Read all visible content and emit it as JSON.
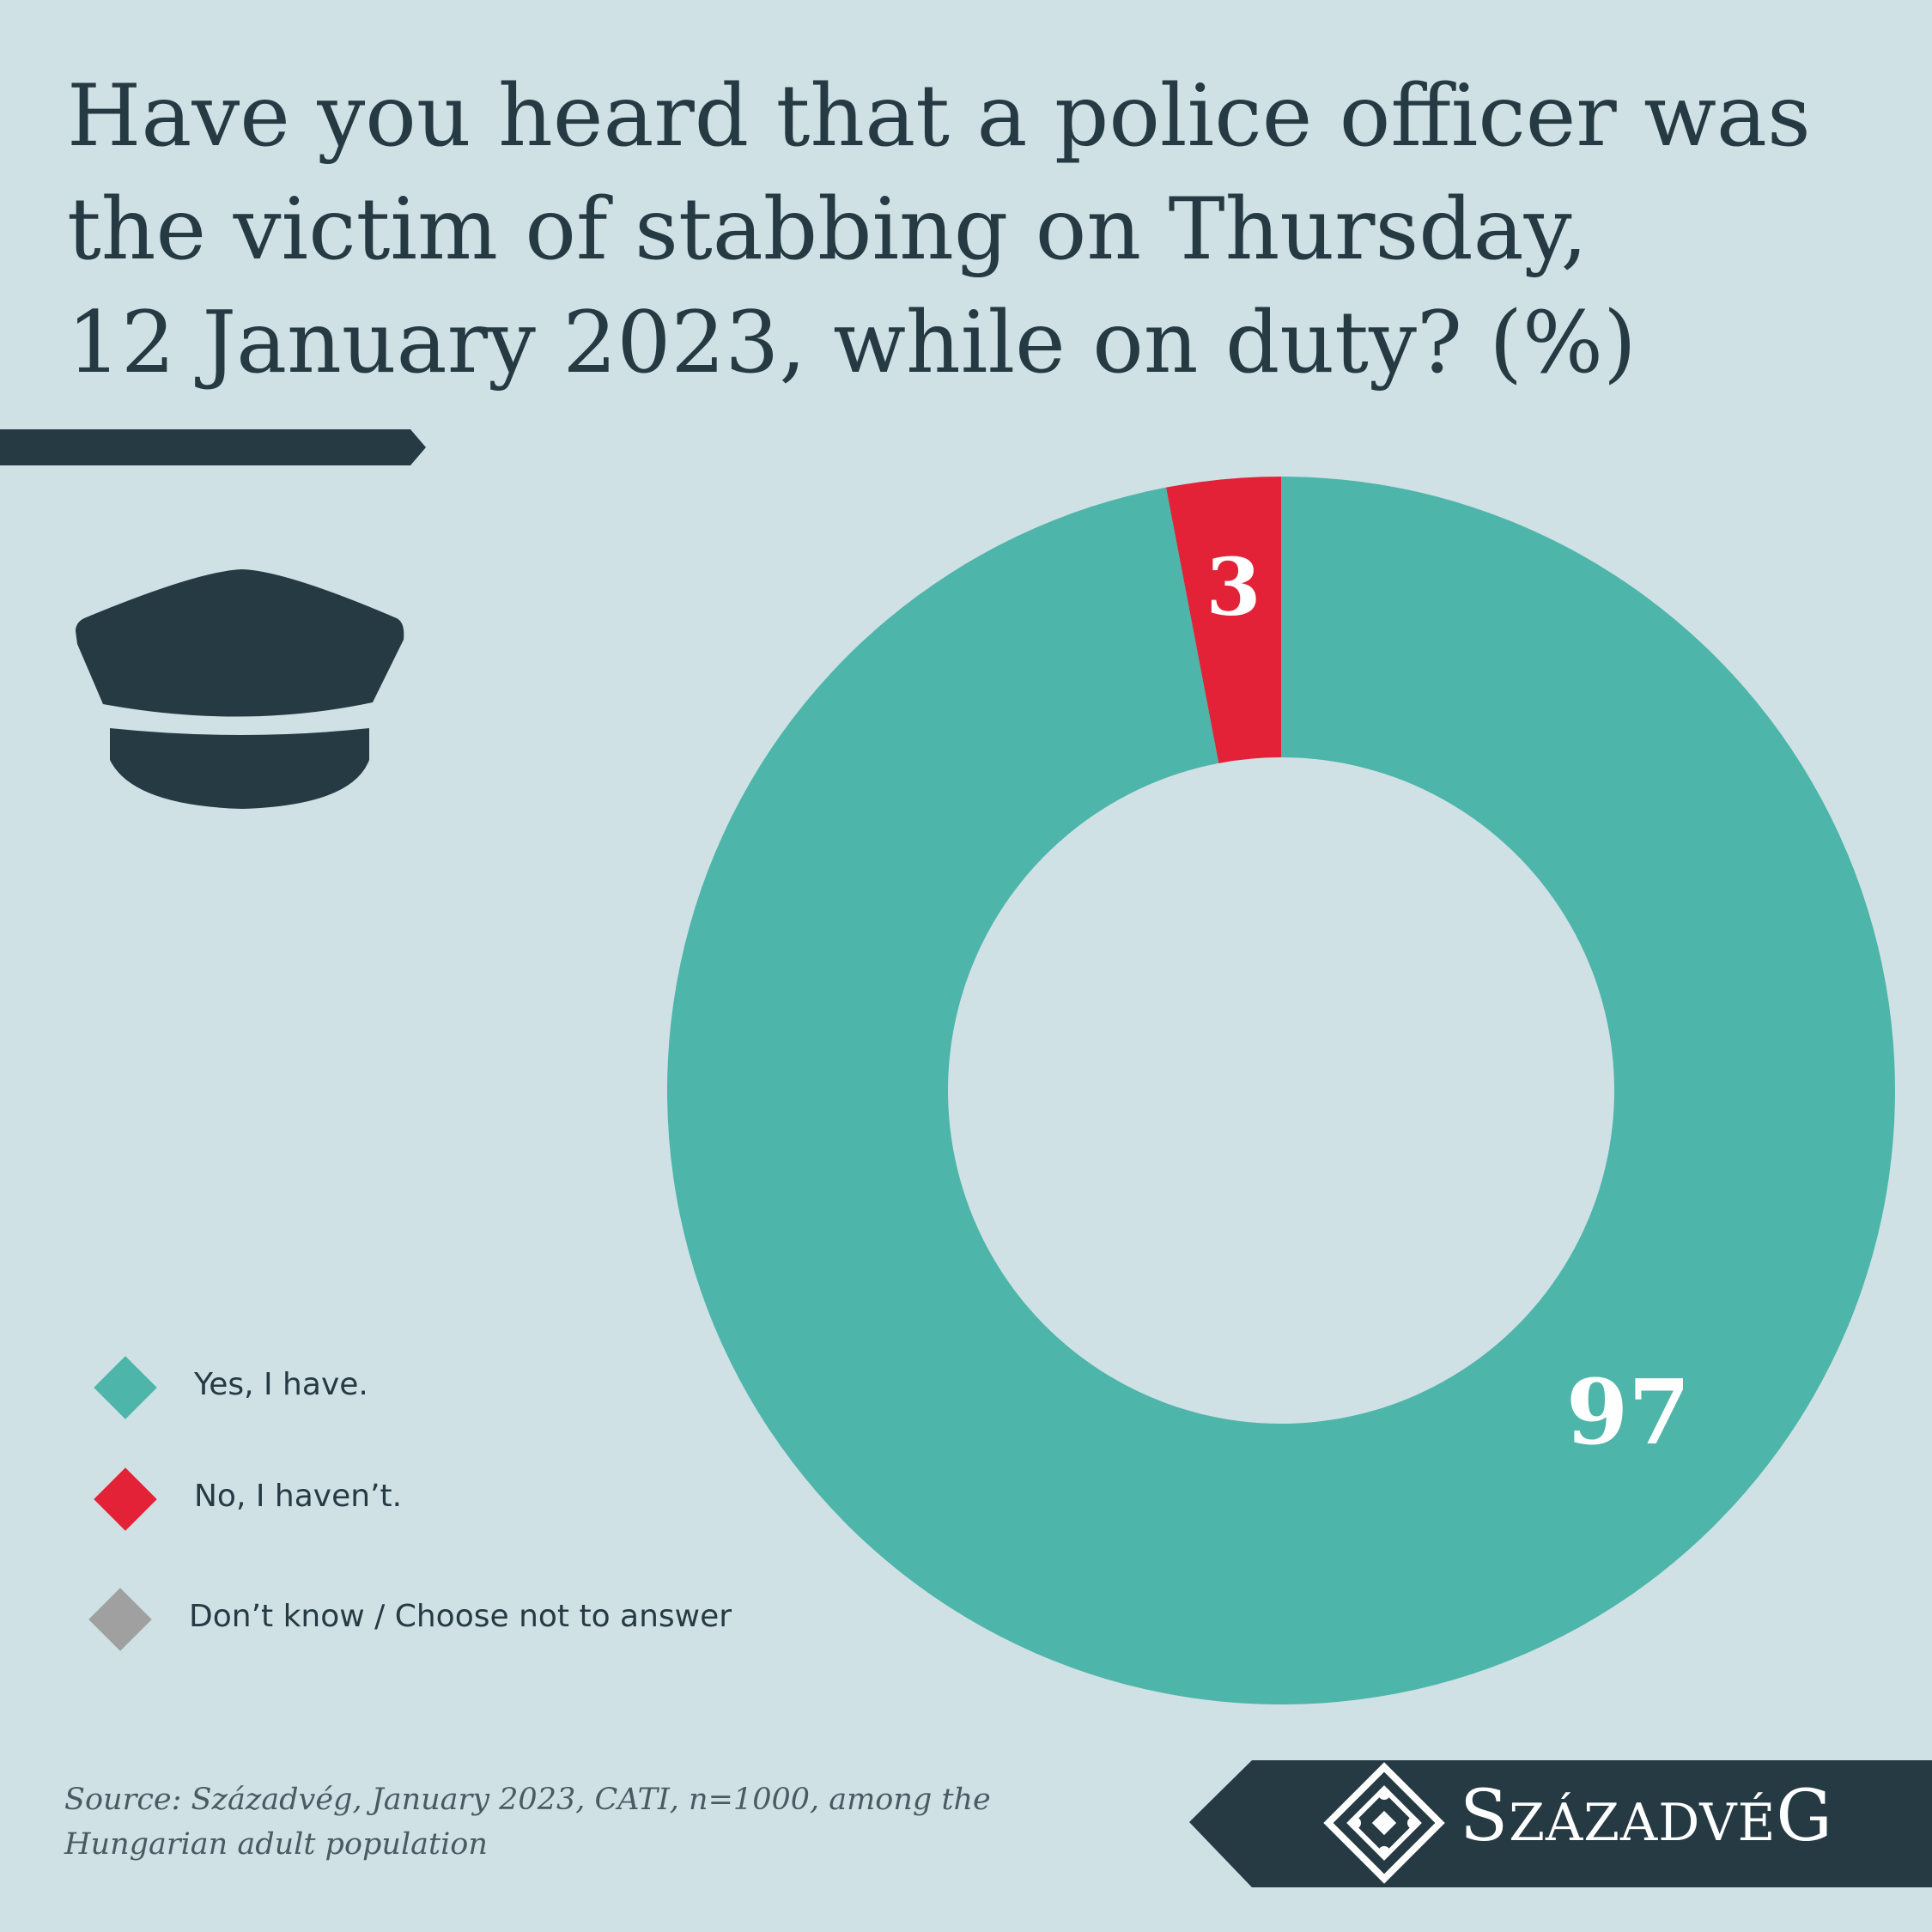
{
  "title_lines": [
    "Have you heard that a police officer was",
    "the victim of stabbing on Thursday,",
    "12 January 2023, while on duty? (%)"
  ],
  "colors": {
    "background": "#cfe1e4",
    "dark": "#263a44",
    "yes": "#4db5aa",
    "no": "#e32237",
    "dont_know": "#a0a0a0"
  },
  "icon": "police-cap-icon",
  "chart_data": {
    "type": "pie",
    "variant": "donut",
    "title": "Have you heard that a police officer was the victim of stabbing on Thursday, 12 January 2023, while on duty? (%)",
    "categories": [
      "Yes, I have.",
      "No, I haven’t.",
      "Don’t know / Choose not to answer"
    ],
    "values": [
      97,
      3,
      0
    ],
    "data_labels": [
      "97",
      "3",
      ""
    ],
    "colors": [
      "#4db5aa",
      "#e32237",
      "#a0a0a0"
    ],
    "legend_position": "bottom-left"
  },
  "legend": [
    {
      "label": "Yes, I have.",
      "color": "#4db5aa"
    },
    {
      "label": "No, I haven’t.",
      "color": "#e32237"
    },
    {
      "label": "Don’t know / Choose not to answer",
      "color": "#a0a0a0"
    }
  ],
  "source_lines": [
    "Source: Századvég, January 2023, CATI, n=1000, among the",
    "Hungarian adult population"
  ],
  "brand": {
    "big_s": "S",
    "small_1": "ZÁZADV",
    "big_e": "É",
    "big_g": "G",
    "logo_icon": "szazadveg-logo-icon"
  }
}
